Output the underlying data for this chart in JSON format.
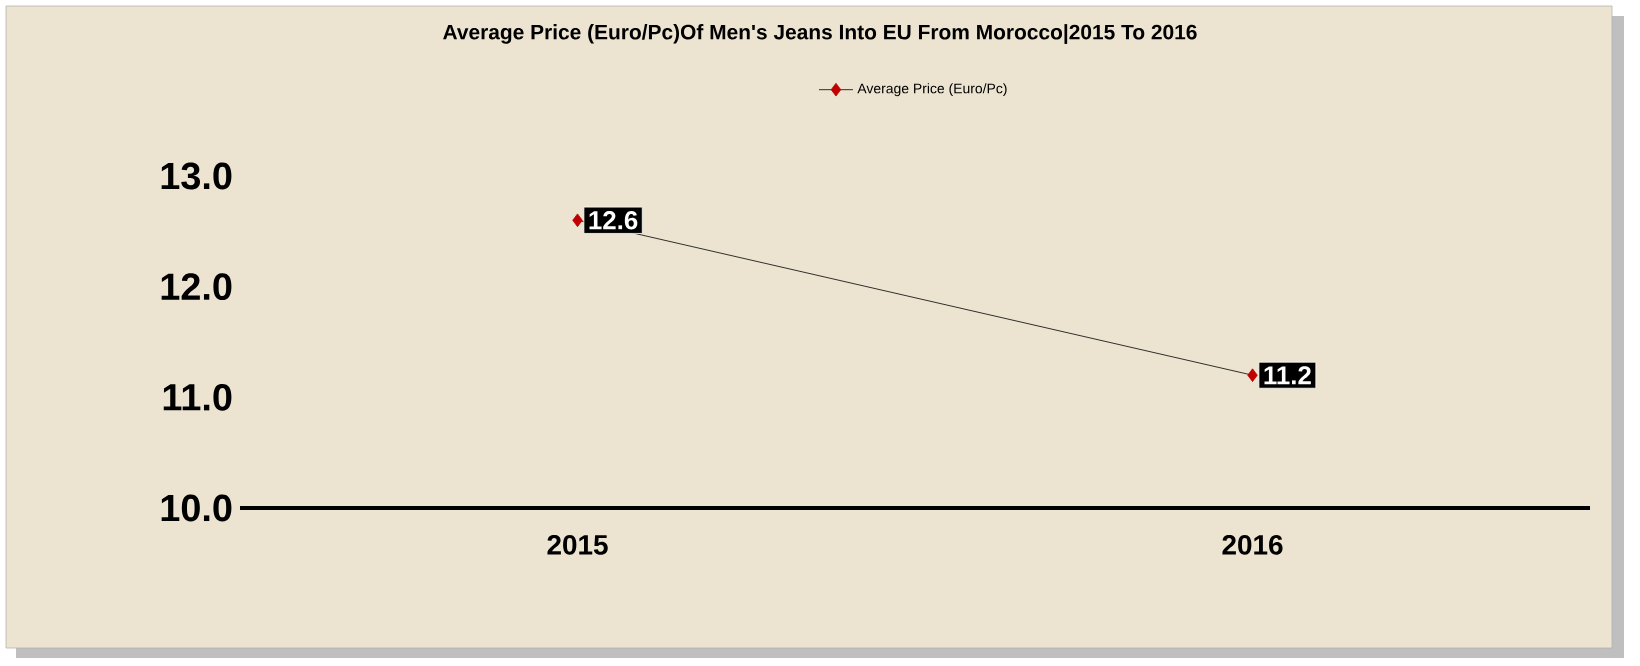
{
  "chart_data": {
    "type": "line",
    "title": "Average Price (Euro/Pc)Of Men's Jeans Into EU From Morocco|2015 To 2016",
    "categories": [
      "2015",
      "2016"
    ],
    "series": [
      {
        "name": "Average Price (Euro/Pc)",
        "color": "#c00000",
        "values": [
          12.6,
          11.2
        ]
      }
    ],
    "ylim": [
      10,
      13
    ],
    "yticks": [
      {
        "value": 10,
        "label": "10.0"
      },
      {
        "value": 11,
        "label": "11.0"
      },
      {
        "value": 12,
        "label": "12.0"
      },
      {
        "value": 13,
        "label": "13.0"
      }
    ],
    "grid": false,
    "legend": "top",
    "marker": "diamond",
    "line_style": "solid",
    "data_labels": true
  }
}
